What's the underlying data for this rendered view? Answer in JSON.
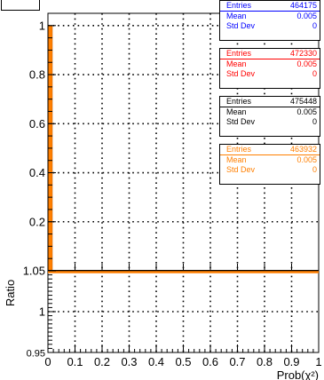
{
  "chart_data": [
    {
      "type": "histogram",
      "xlim": [
        0,
        1
      ],
      "ylim": [
        0,
        1.05
      ],
      "yticks": [
        0.2,
        0.4,
        0.6,
        0.8,
        1
      ],
      "ytick_labels": [
        "0.2",
        "0.4",
        "0.6",
        "0.8",
        "1"
      ],
      "grid": true,
      "series": [
        {
          "color": "#0000ff",
          "stats": {
            "Entries": "464175",
            "Mean": "0.005",
            "Std Dev": "0"
          }
        },
        {
          "color": "#ff0000",
          "stats": {
            "Entries": "472330",
            "Mean": "0.005",
            "Std Dev": "0"
          }
        },
        {
          "color": "#000000",
          "stats": {
            "Entries": "475448",
            "Mean": "0.005",
            "Std Dev": "0"
          }
        },
        {
          "color": "#ff7f00",
          "stats": {
            "Entries": "463932",
            "Mean": "0.005",
            "Std Dev": "0"
          }
        }
      ],
      "bins": [
        {
          "x0": 0.0,
          "x1": 0.01,
          "y": 1.0
        }
      ],
      "fill_color": "#ff7f00"
    },
    {
      "type": "line",
      "ylabel": "Ratio",
      "xlabel": "Prob(χ²)",
      "xlim": [
        0,
        1
      ],
      "ylim": [
        0.95,
        1.05
      ],
      "xticks": [
        0,
        0.1,
        0.2,
        0.3,
        0.4,
        0.5,
        0.6,
        0.7,
        0.8,
        0.9,
        1
      ],
      "xtick_labels": [
        "0",
        "0.1",
        "0.2",
        "0.3",
        "0.4",
        "0.5",
        "0.6",
        "0.7",
        "0.8",
        "0.9",
        "1"
      ],
      "yticks": [
        0.95,
        1,
        1.05
      ],
      "ytick_labels": [
        "0.95",
        "1",
        "1.05"
      ],
      "grid": true,
      "series": [
        {
          "color": "#ff7f00",
          "x": [
            0,
            1
          ],
          "y": [
            1.05,
            1.05
          ]
        }
      ]
    }
  ]
}
